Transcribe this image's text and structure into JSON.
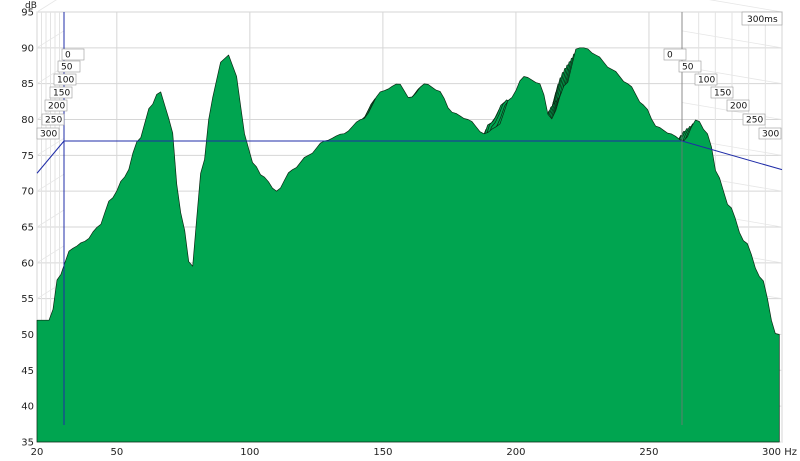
{
  "chart_data": {
    "type": "area",
    "title": "",
    "xlabel": "Hz",
    "ylabel": "dB",
    "xlim": [
      20,
      300
    ],
    "ylim": [
      35,
      95
    ],
    "x_ticks": [
      20,
      50,
      100,
      150,
      200,
      250,
      300
    ],
    "x_tick_labels": [
      "20",
      "50",
      "100",
      "150",
      "200",
      "250",
      "300 Hz"
    ],
    "y_ticks": [
      35,
      40,
      45,
      50,
      55,
      60,
      65,
      70,
      75,
      80,
      85,
      90,
      95
    ],
    "y_tick_labels": [
      "35",
      "40",
      "45",
      "50",
      "55",
      "60",
      "65",
      "70",
      "75",
      "80",
      "85",
      "90",
      "95"
    ],
    "time_axis_label": "300ms",
    "time_ticks_left": [
      "0",
      "50",
      "100",
      "150",
      "200",
      "250",
      "300"
    ],
    "time_ticks_right": [
      "0",
      "50",
      "100",
      "150",
      "200",
      "250",
      "300"
    ],
    "grid": true,
    "waterfall_slices": 30,
    "time_range_ms": [
      0,
      300
    ],
    "series_front_0ms": {
      "x": [
        25,
        28,
        33,
        38,
        43,
        48,
        53,
        58,
        63,
        66,
        70,
        74,
        78,
        82,
        86,
        89,
        92,
        95,
        98,
        101,
        105,
        110,
        116,
        122,
        128,
        135,
        142,
        150,
        156,
        160,
        166,
        171,
        176,
        182,
        188,
        193,
        198,
        203,
        209,
        213,
        219,
        223,
        226,
        230,
        236,
        242,
        248,
        253,
        258,
        263,
        268,
        272,
        276,
        280,
        286,
        292,
        298
      ],
      "y": [
        52,
        58,
        62,
        63,
        65,
        69,
        72,
        77,
        82,
        84,
        80,
        67,
        59,
        73,
        83,
        88,
        89,
        86,
        78,
        74,
        72,
        70,
        73,
        75,
        77,
        78,
        80,
        84,
        85,
        83,
        85,
        84,
        81,
        80,
        78,
        79,
        83,
        86,
        85,
        80,
        85,
        90,
        90,
        89,
        87,
        85,
        82,
        79,
        78,
        77,
        80,
        78,
        72,
        68,
        63,
        58,
        50
      ]
    },
    "colors": {
      "fill": "#00a550",
      "slice_line": "#0a2a14",
      "grid": "#d6d6d6",
      "axis": "#1f2ca8",
      "background": "#ffffff"
    }
  }
}
